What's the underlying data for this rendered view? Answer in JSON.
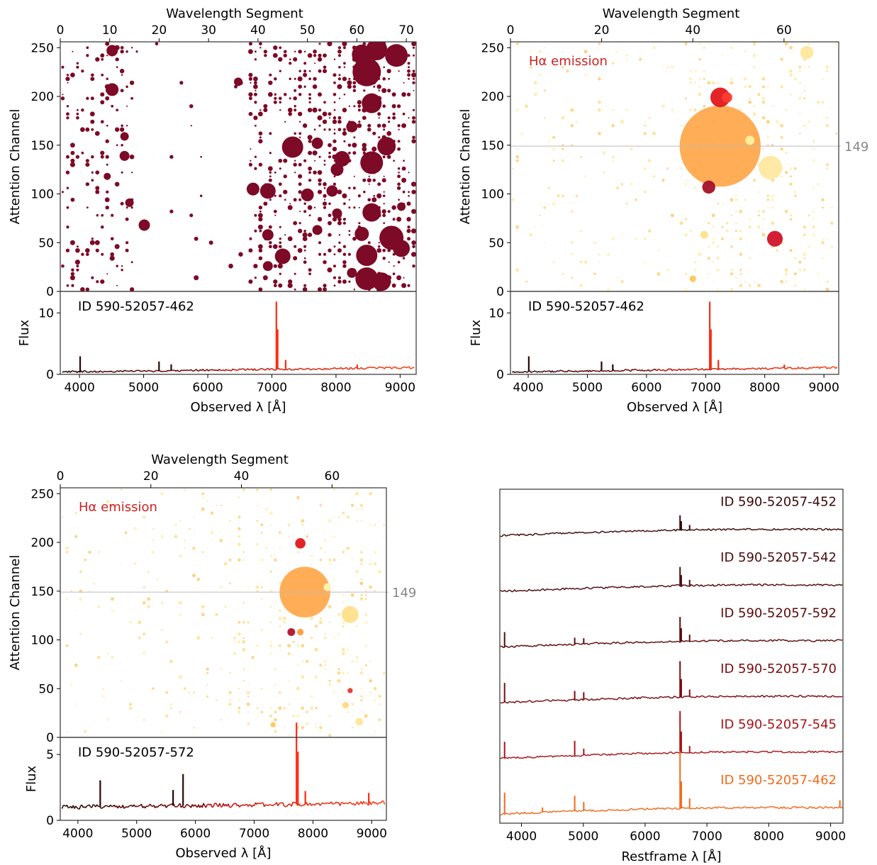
{
  "chart_data": [
    {
      "type": "scatter",
      "panel": "top-left",
      "top_xlabel": "Wavelength Segment",
      "ylabel": "Attention Channel",
      "top_xlim": [
        0,
        72
      ],
      "top_xticks": [
        0,
        10,
        20,
        30,
        40,
        50,
        60,
        70
      ],
      "ylim": [
        0,
        256
      ],
      "yticks": [
        0,
        50,
        100,
        150,
        200,
        250
      ],
      "color_scheme": "dark-red",
      "large_points": [
        {
          "x": 10.5,
          "y": 247,
          "s": 8
        },
        {
          "x": 10.5,
          "y": 207,
          "s": 9
        },
        {
          "x": 13,
          "y": 159,
          "s": 6
        },
        {
          "x": 13,
          "y": 139,
          "s": 7
        },
        {
          "x": 9.5,
          "y": 118,
          "s": 5
        },
        {
          "x": 14,
          "y": 91,
          "s": 6
        },
        {
          "x": 17,
          "y": 68,
          "s": 8
        },
        {
          "x": 36,
          "y": 215,
          "s": 6
        },
        {
          "x": 39,
          "y": 105,
          "s": 9
        },
        {
          "x": 42,
          "y": 103,
          "s": 11
        },
        {
          "x": 42,
          "y": 58,
          "s": 8
        },
        {
          "x": 45,
          "y": 36,
          "s": 11
        },
        {
          "x": 42,
          "y": 26,
          "s": 7
        },
        {
          "x": 47,
          "y": 148,
          "s": 15
        },
        {
          "x": 50,
          "y": 99,
          "s": 9
        },
        {
          "x": 52,
          "y": 152,
          "s": 8
        },
        {
          "x": 52,
          "y": 63,
          "s": 7
        },
        {
          "x": 55,
          "y": 103,
          "s": 8
        },
        {
          "x": 57,
          "y": 136,
          "s": 11
        },
        {
          "x": 56,
          "y": 125,
          "s": 9
        },
        {
          "x": 56,
          "y": 80,
          "s": 7
        },
        {
          "x": 59,
          "y": 169,
          "s": 8
        },
        {
          "x": 61,
          "y": 243,
          "s": 14
        },
        {
          "x": 62,
          "y": 225,
          "s": 20
        },
        {
          "x": 63,
          "y": 193,
          "s": 14
        },
        {
          "x": 64,
          "y": 248,
          "s": 15
        },
        {
          "x": 68,
          "y": 242,
          "s": 16
        },
        {
          "x": 63,
          "y": 132,
          "s": 16
        },
        {
          "x": 66,
          "y": 149,
          "s": 13
        },
        {
          "x": 63,
          "y": 81,
          "s": 13
        },
        {
          "x": 61,
          "y": 59,
          "s": 10
        },
        {
          "x": 62,
          "y": 37,
          "s": 15
        },
        {
          "x": 62,
          "y": 13,
          "s": 16
        },
        {
          "x": 65,
          "y": 10,
          "s": 13
        },
        {
          "x": 67,
          "y": 55,
          "s": 17
        },
        {
          "x": 69,
          "y": 44,
          "s": 12
        },
        {
          "x": 59,
          "y": 19,
          "s": 7
        },
        {
          "x": 69,
          "y": 87,
          "s": 6
        }
      ]
    },
    {
      "type": "scatter",
      "panel": "top-right",
      "top_xlabel": "Wavelength Segment",
      "ylabel": "Attention Channel",
      "top_xlim": [
        0,
        72
      ],
      "top_xticks": [
        0,
        20,
        40,
        60
      ],
      "ylim": [
        0,
        256
      ],
      "yticks": [
        0,
        50,
        100,
        150,
        200,
        250
      ],
      "annotation": "Hα emission",
      "reference_line": {
        "y": 149,
        "label": "149"
      },
      "color_scheme": "yellow-orange-red",
      "large_points": [
        {
          "x": 46,
          "y": 149,
          "s": 62,
          "c": "#ffa94d"
        },
        {
          "x": 46,
          "y": 199,
          "s": 15,
          "c": "#e0181b"
        },
        {
          "x": 47.5,
          "y": 199,
          "s": 8,
          "c": "#ff3b2f"
        },
        {
          "x": 43.5,
          "y": 107,
          "s": 10,
          "c": "#a3112b"
        },
        {
          "x": 58,
          "y": 54,
          "s": 12,
          "c": "#d1122a"
        },
        {
          "x": 57,
          "y": 127,
          "s": 18,
          "c": "#ffe8a0"
        },
        {
          "x": 52.5,
          "y": 155,
          "s": 7,
          "c": "#fff2a0"
        },
        {
          "x": 65,
          "y": 245,
          "s": 10,
          "c": "#ffe79a"
        },
        {
          "x": 42.5,
          "y": 58,
          "s": 6,
          "c": "#ffe28a"
        },
        {
          "x": 40,
          "y": 13,
          "s": 5,
          "c": "#ffc657"
        }
      ]
    },
    {
      "type": "scatter",
      "panel": "bottom-left",
      "top_xlabel": "Wavelength Segment",
      "ylabel": "Attention Channel",
      "top_xlim": [
        0,
        72
      ],
      "top_xticks": [
        0,
        20,
        40,
        60
      ],
      "ylim": [
        0,
        256
      ],
      "yticks": [
        0,
        50,
        100,
        150,
        200,
        250
      ],
      "annotation": "Hα emission",
      "reference_line": {
        "y": 149,
        "label": "149"
      },
      "color_scheme": "yellow-orange-red",
      "large_points": [
        {
          "x": 54,
          "y": 149,
          "s": 39,
          "c": "#ffa94d"
        },
        {
          "x": 53,
          "y": 199,
          "s": 8,
          "c": "#e0181b"
        },
        {
          "x": 64,
          "y": 126,
          "s": 13,
          "c": "#ffe08a"
        },
        {
          "x": 59,
          "y": 154,
          "s": 6,
          "c": "#fff4b0"
        },
        {
          "x": 51,
          "y": 108,
          "s": 6,
          "c": "#b3122b"
        },
        {
          "x": 53,
          "y": 108,
          "s": 5,
          "c": "#ff9b3d"
        },
        {
          "x": 63,
          "y": 33,
          "s": 5,
          "c": "#ffd980"
        },
        {
          "x": 66,
          "y": 16,
          "s": 6,
          "c": "#ffe79a"
        },
        {
          "x": 47,
          "y": 13,
          "s": 4,
          "c": "#ffc657"
        },
        {
          "x": 64,
          "y": 48,
          "s": 4,
          "c": "#e83535"
        }
      ]
    },
    {
      "type": "line",
      "panel": "top-left-spectrum",
      "ylabel": "Flux",
      "xlabel": "Observed λ [Å]",
      "xlim": [
        3700,
        9250
      ],
      "xticks": [
        4000,
        5000,
        6000,
        7000,
        8000,
        9000
      ],
      "ylim": [
        0,
        13.5
      ],
      "yticks": [
        0,
        10
      ],
      "id_label": "ID 590-52057-462",
      "continuum": {
        "start": 0.4,
        "end": 1.1
      },
      "lines": [
        {
          "x": 4010,
          "h": 2.5
        },
        {
          "x": 5240,
          "h": 1.5
        },
        {
          "x": 5430,
          "h": 1
        },
        {
          "x": 7070,
          "h": 11
        },
        {
          "x": 7090,
          "h": 6.5
        },
        {
          "x": 7215,
          "h": 1.5
        },
        {
          "x": 8330,
          "h": 0.6
        }
      ]
    },
    {
      "type": "line",
      "panel": "top-right-spectrum",
      "ylabel": "Flux",
      "xlabel": "Observed λ [Å]",
      "xlim": [
        3700,
        9250
      ],
      "xticks": [
        4000,
        5000,
        6000,
        7000,
        8000,
        9000
      ],
      "ylim": [
        0,
        13.5
      ],
      "yticks": [
        0,
        10
      ],
      "id_label": "ID 590-52057-462",
      "continuum": {
        "start": 0.4,
        "end": 1.1
      },
      "lines": [
        {
          "x": 4010,
          "h": 2.5
        },
        {
          "x": 5240,
          "h": 1.5
        },
        {
          "x": 5430,
          "h": 1
        },
        {
          "x": 7070,
          "h": 11
        },
        {
          "x": 7090,
          "h": 6.5
        },
        {
          "x": 7215,
          "h": 1.5
        },
        {
          "x": 8330,
          "h": 0.6
        }
      ]
    },
    {
      "type": "line",
      "panel": "bottom-left-spectrum",
      "ylabel": "Flux",
      "xlabel": "Observed λ [Å]",
      "xlim": [
        3700,
        9250
      ],
      "xticks": [
        4000,
        5000,
        6000,
        7000,
        8000,
        9000
      ],
      "ylim": [
        0,
        6.3
      ],
      "yticks": [
        0,
        5
      ],
      "id_label": "ID 590-52057-572",
      "continuum": {
        "start": 1.0,
        "end": 1.3
      },
      "lines": [
        {
          "x": 4380,
          "h": 2.0
        },
        {
          "x": 5620,
          "h": 1.2
        },
        {
          "x": 5790,
          "h": 2.4
        },
        {
          "x": 7720,
          "h": 6.2
        },
        {
          "x": 7745,
          "h": 4.0
        },
        {
          "x": 7870,
          "h": 1.0
        },
        {
          "x": 8950,
          "h": 0.8
        }
      ]
    },
    {
      "type": "line",
      "panel": "bottom-right",
      "xlabel": "Restframe λ [Å]",
      "xlim": [
        3650,
        9200
      ],
      "xticks": [
        4000,
        5000,
        6000,
        7000,
        8000,
        9000
      ],
      "series": [
        {
          "name": "ID 590-52057-452",
          "color": "#3a0a0a",
          "offset": 5,
          "lines": [
            {
              "x": 6565,
              "h": 1.8
            },
            {
              "x": 6585,
              "h": 1.1
            },
            {
              "x": 6720,
              "h": 0.6
            }
          ]
        },
        {
          "name": "ID 590-52057-542",
          "color": "#4a0c10",
          "offset": 4,
          "lines": [
            {
              "x": 6565,
              "h": 2.3
            },
            {
              "x": 6585,
              "h": 1.3
            },
            {
              "x": 6720,
              "h": 0.7
            }
          ]
        },
        {
          "name": "ID 590-52057-592",
          "color": "#5c0b0b",
          "offset": 3,
          "lines": [
            {
              "x": 3727,
              "h": 1.8
            },
            {
              "x": 4861,
              "h": 0.8
            },
            {
              "x": 5007,
              "h": 0.7
            },
            {
              "x": 6565,
              "h": 3.0
            },
            {
              "x": 6585,
              "h": 1.6
            },
            {
              "x": 6720,
              "h": 0.8
            }
          ]
        },
        {
          "name": "ID 590-52057-570",
          "color": "#7a0c10",
          "offset": 2,
          "lines": [
            {
              "x": 3727,
              "h": 2.4
            },
            {
              "x": 4861,
              "h": 1.1
            },
            {
              "x": 5007,
              "h": 0.9
            },
            {
              "x": 6565,
              "h": 4.4
            },
            {
              "x": 6585,
              "h": 2.2
            },
            {
              "x": 6720,
              "h": 0.9
            }
          ]
        },
        {
          "name": "ID 590-52057-545",
          "color": "#a8141a",
          "offset": 1,
          "lines": [
            {
              "x": 3727,
              "h": 2.0
            },
            {
              "x": 4861,
              "h": 1.8
            },
            {
              "x": 5007,
              "h": 0.8
            },
            {
              "x": 6565,
              "h": 5.1
            },
            {
              "x": 6585,
              "h": 2.6
            },
            {
              "x": 6720,
              "h": 0.8
            }
          ]
        },
        {
          "name": "ID 590-52057-462",
          "color": "#f26a1b",
          "offset": 0,
          "lines": [
            {
              "x": 3727,
              "h": 2.6
            },
            {
              "x": 4340,
              "h": 0.6
            },
            {
              "x": 4861,
              "h": 1.9
            },
            {
              "x": 5007,
              "h": 1.1
            },
            {
              "x": 6565,
              "h": 7.0
            },
            {
              "x": 6585,
              "h": 3.3
            },
            {
              "x": 6720,
              "h": 1.2
            },
            {
              "x": 9150,
              "h": 0.9
            }
          ]
        }
      ]
    }
  ]
}
